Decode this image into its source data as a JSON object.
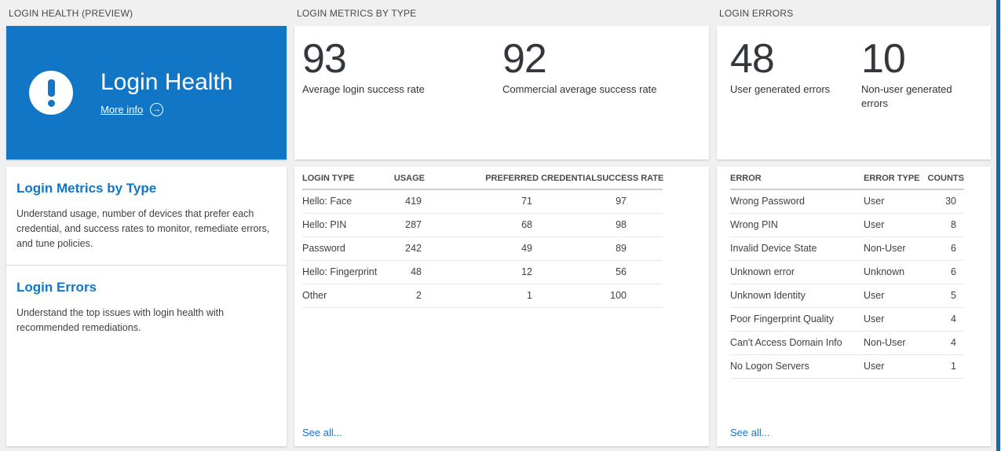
{
  "colors": {
    "banner_blue": "#1276c6",
    "heading_blue": "#1276c6",
    "link_blue": "#1673cc",
    "accent_strip": "#1a6aa5",
    "stat_number": "#33383e",
    "page_background": "#f0f0f0"
  },
  "login_health": {
    "section_title": "LOGIN HEALTH (PREVIEW)",
    "banner": {
      "title": "Login Health",
      "more_info_label": "More info",
      "arrow_icon": "→"
    },
    "nav_sections": [
      {
        "title": "Login Metrics by Type",
        "description": "Understand usage, number of devices that prefer each credential, and success rates to monitor, remediate errors, and tune policies."
      },
      {
        "title": "Login Errors",
        "description": "Understand the top issues with login health with recommended remediations."
      }
    ]
  },
  "login_metrics": {
    "section_title": "LOGIN METRICS BY TYPE",
    "stats": [
      {
        "value": "93",
        "label": "Average login success rate"
      },
      {
        "value": "92",
        "label": "Commercial average success rate"
      }
    ],
    "table": {
      "headers": [
        "LOGIN TYPE",
        "USAGE",
        "PREFERRED CREDENTIAL",
        "SUCCESS RATE"
      ],
      "rows": [
        [
          "Hello: Face",
          "419",
          "71",
          "97"
        ],
        [
          "Hello: PIN",
          "287",
          "68",
          "98"
        ],
        [
          "Password",
          "242",
          "49",
          "89"
        ],
        [
          "Hello: Fingerprint",
          "48",
          "12",
          "56"
        ],
        [
          "Other",
          "2",
          "1",
          "100"
        ]
      ]
    },
    "see_all_label": "See all..."
  },
  "login_errors": {
    "section_title": "LOGIN ERRORS",
    "stats": [
      {
        "value": "48",
        "label": "User generated errors"
      },
      {
        "value": "10",
        "label": "Non-user generated errors"
      }
    ],
    "table": {
      "headers": [
        "ERROR",
        "ERROR TYPE",
        "COUNTS"
      ],
      "rows": [
        [
          "Wrong Password",
          "User",
          "30"
        ],
        [
          "Wrong PIN",
          "User",
          "8"
        ],
        [
          "Invalid Device State",
          "Non-User",
          "6"
        ],
        [
          "Unknown error",
          "Unknown",
          "6"
        ],
        [
          "Unknown Identity",
          "User",
          "5"
        ],
        [
          "Poor Fingerprint Quality",
          "User",
          "4"
        ],
        [
          "Can't Access Domain Info",
          "Non-User",
          "4"
        ],
        [
          "No Logon Servers",
          "User",
          "1"
        ]
      ]
    },
    "see_all_label": "See all..."
  }
}
